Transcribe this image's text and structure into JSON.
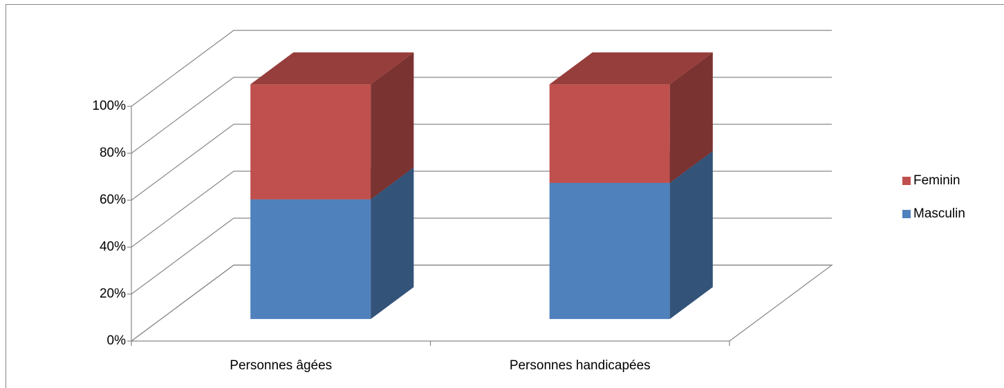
{
  "chart_data": {
    "type": "bar3d_stacked",
    "categories": [
      "Personnes âgées",
      "Personnes handicapées"
    ],
    "series": [
      {
        "name": "Masculin",
        "color": "#4f81bd",
        "values": [
          51,
          58
        ]
      },
      {
        "name": "Feminin",
        "color": "#c0504d",
        "values": [
          49,
          42
        ]
      }
    ],
    "ylim": [
      0,
      100
    ],
    "yticks": [
      {
        "value": 0,
        "label": "0%"
      },
      {
        "value": 20,
        "label": "20%"
      },
      {
        "value": 40,
        "label": "40%"
      },
      {
        "value": 60,
        "label": "60%"
      },
      {
        "value": 80,
        "label": "80%"
      },
      {
        "value": 100,
        "label": "100%"
      }
    ],
    "grid": true,
    "legend": "right"
  }
}
